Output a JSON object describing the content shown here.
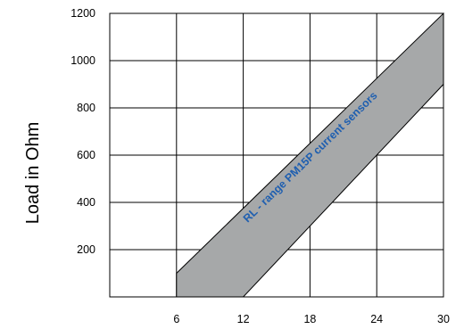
{
  "chart_data": {
    "type": "area",
    "title": "",
    "xlabel": "",
    "ylabel": "Load in Ohm",
    "xlim": [
      0,
      30
    ],
    "ylim": [
      0,
      1200
    ],
    "x_ticks": [
      6,
      12,
      18,
      24,
      30
    ],
    "y_ticks": [
      200,
      400,
      600,
      800,
      1000,
      1200
    ],
    "grid": true,
    "band": {
      "upper": [
        {
          "x": 6,
          "y": 100
        },
        {
          "x": 30,
          "y": 1200
        }
      ],
      "lower": [
        {
          "x": 12,
          "y": 0
        },
        {
          "x": 30,
          "y": 900
        }
      ],
      "left_edge": [
        {
          "x": 6,
          "y": 0
        },
        {
          "x": 6,
          "y": 100
        }
      ],
      "fill_color": "#a6a8a9",
      "label": "RL - range PM15P current sensors",
      "label_color": "#1f5fb0"
    }
  }
}
